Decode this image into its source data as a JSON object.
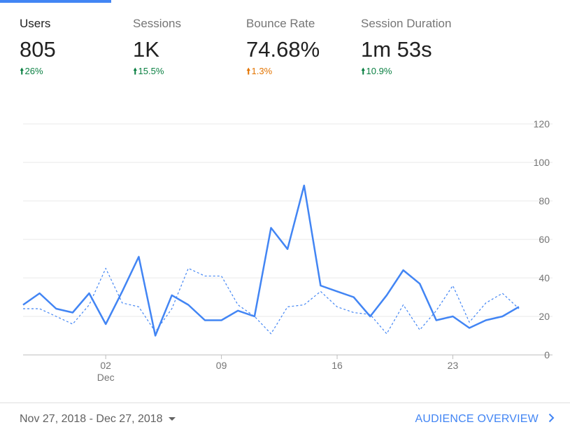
{
  "metrics": [
    {
      "label": "Users",
      "value": "805",
      "delta": "26%",
      "direction": "up",
      "color": "#0b8043",
      "selected": true
    },
    {
      "label": "Sessions",
      "value": "1K",
      "delta": "15.5%",
      "direction": "up",
      "color": "#0b8043",
      "selected": false
    },
    {
      "label": "Bounce Rate",
      "value": "74.68%",
      "delta": "1.3%",
      "direction": "up",
      "color": "#e37400",
      "selected": false
    },
    {
      "label": "Session Duration",
      "value": "1m 53s",
      "delta": "10.9%",
      "direction": "up",
      "color": "#0b8043",
      "selected": false
    }
  ],
  "chart_data": {
    "type": "line",
    "x": [
      "Nov 27",
      "Nov 28",
      "Nov 29",
      "Nov 30",
      "Dec 01",
      "Dec 02",
      "Dec 03",
      "Dec 04",
      "Dec 05",
      "Dec 06",
      "Dec 07",
      "Dec 08",
      "Dec 09",
      "Dec 10",
      "Dec 11",
      "Dec 12",
      "Dec 13",
      "Dec 14",
      "Dec 15",
      "Dec 16",
      "Dec 17",
      "Dec 18",
      "Dec 19",
      "Dec 20",
      "Dec 21",
      "Dec 22",
      "Dec 23",
      "Dec 24",
      "Dec 25",
      "Dec 26",
      "Dec 27"
    ],
    "x_ticks": [
      {
        "index": 5,
        "label": "02",
        "sublabel": "Dec"
      },
      {
        "index": 12,
        "label": "09",
        "sublabel": ""
      },
      {
        "index": 19,
        "label": "16",
        "sublabel": ""
      },
      {
        "index": 26,
        "label": "23",
        "sublabel": ""
      }
    ],
    "y_ticks": [
      0,
      20,
      40,
      60,
      80,
      100,
      120
    ],
    "ylim": [
      0,
      120
    ],
    "series": [
      {
        "style": "solid",
        "color": "#4285f4",
        "values": [
          26,
          32,
          24,
          22,
          32,
          16,
          33,
          51,
          10,
          31,
          26,
          18,
          18,
          23,
          20,
          66,
          55,
          88,
          36,
          33,
          30,
          20,
          31,
          44,
          37,
          18,
          20,
          14,
          18,
          20,
          25
        ]
      },
      {
        "style": "dashed",
        "color": "#4285f4",
        "values": [
          24,
          24,
          20,
          16,
          26,
          45,
          27,
          25,
          12,
          24,
          45,
          41,
          41,
          26,
          20,
          11,
          25,
          26,
          33,
          25,
          22,
          21,
          11,
          26,
          13,
          23,
          36,
          17,
          27,
          32,
          24
        ]
      }
    ]
  },
  "footer": {
    "date_range": "Nov 27, 2018 - Dec 27, 2018",
    "link_label": "AUDIENCE OVERVIEW"
  }
}
